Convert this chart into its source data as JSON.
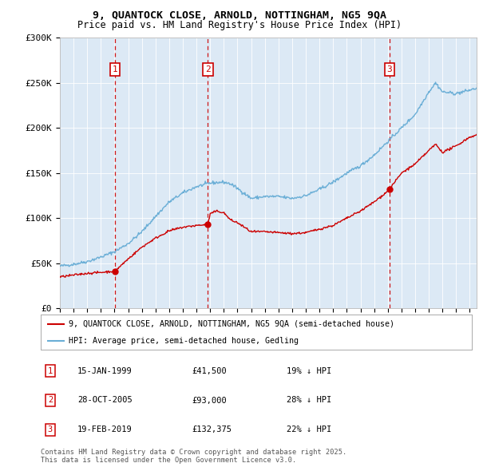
{
  "title_line1": "9, QUANTOCK CLOSE, ARNOLD, NOTTINGHAM, NG5 9QA",
  "title_line2": "Price paid vs. HM Land Registry's House Price Index (HPI)",
  "red_line_label": "9, QUANTOCK CLOSE, ARNOLD, NOTTINGHAM, NG5 9QA (semi-detached house)",
  "blue_line_label": "HPI: Average price, semi-detached house, Gedling",
  "transactions": [
    {
      "num": 1,
      "date": "15-JAN-1999",
      "price": "£41,500",
      "hpi": "19% ↓ HPI",
      "x_year": 1999.04,
      "y_val": 41500
    },
    {
      "num": 2,
      "date": "28-OCT-2005",
      "price": "£93,000",
      "hpi": "28% ↓ HPI",
      "x_year": 2005.83,
      "y_val": 93000
    },
    {
      "num": 3,
      "date": "19-FEB-2019",
      "price": "£132,375",
      "hpi": "22% ↓ HPI",
      "x_year": 2019.13,
      "y_val": 132375
    }
  ],
  "footer": "Contains HM Land Registry data © Crown copyright and database right 2025.\nThis data is licensed under the Open Government Licence v3.0.",
  "ylim": [
    0,
    300000
  ],
  "xlim_start": 1995.0,
  "xlim_end": 2025.5,
  "yticks": [
    0,
    50000,
    100000,
    150000,
    200000,
    250000,
    300000
  ],
  "ytick_labels": [
    "£0",
    "£50K",
    "£100K",
    "£150K",
    "£200K",
    "£250K",
    "£300K"
  ],
  "plot_bg_color": "#dce9f5",
  "hpi_anchors_x": [
    1995.0,
    1996.0,
    1997.0,
    1998.0,
    1999.0,
    2000.0,
    2001.0,
    2002.0,
    2003.0,
    2004.0,
    2005.0,
    2006.0,
    2007.0,
    2007.5,
    2008.0,
    2009.0,
    2010.0,
    2011.0,
    2012.0,
    2013.0,
    2014.0,
    2015.0,
    2016.0,
    2017.0,
    2018.0,
    2019.0,
    2020.0,
    2021.0,
    2022.0,
    2022.5,
    2023.0,
    2024.0,
    2025.0,
    2025.5
  ],
  "hpi_anchors_y": [
    47000,
    49000,
    52000,
    57000,
    63000,
    72000,
    85000,
    102000,
    118000,
    128000,
    135000,
    139000,
    140000,
    138000,
    133000,
    122000,
    124000,
    124000,
    122000,
    125000,
    132000,
    140000,
    150000,
    158000,
    170000,
    185000,
    200000,
    215000,
    240000,
    250000,
    240000,
    238000,
    242000,
    244000
  ],
  "red_anchors_x": [
    1995.0,
    1996.0,
    1997.0,
    1998.0,
    1999.04,
    2000.0,
    2001.0,
    2002.0,
    2003.0,
    2004.0,
    2005.0,
    2005.83,
    2006.0,
    2006.5,
    2007.0,
    2007.5,
    2008.0,
    2009.0,
    2010.0,
    2011.0,
    2012.0,
    2013.0,
    2014.0,
    2015.0,
    2016.0,
    2017.0,
    2018.0,
    2019.0,
    2019.13,
    2020.0,
    2021.0,
    2022.0,
    2022.5,
    2023.0,
    2024.0,
    2025.0,
    2025.5
  ],
  "red_anchors_y": [
    35000,
    37000,
    39000,
    40000,
    41500,
    55000,
    68000,
    78000,
    86000,
    90000,
    92000,
    93000,
    105000,
    108000,
    106000,
    98000,
    95000,
    85000,
    85000,
    84000,
    83000,
    84000,
    88000,
    92000,
    100000,
    108000,
    118000,
    130000,
    132375,
    150000,
    160000,
    175000,
    182000,
    173000,
    180000,
    190000,
    192000
  ]
}
